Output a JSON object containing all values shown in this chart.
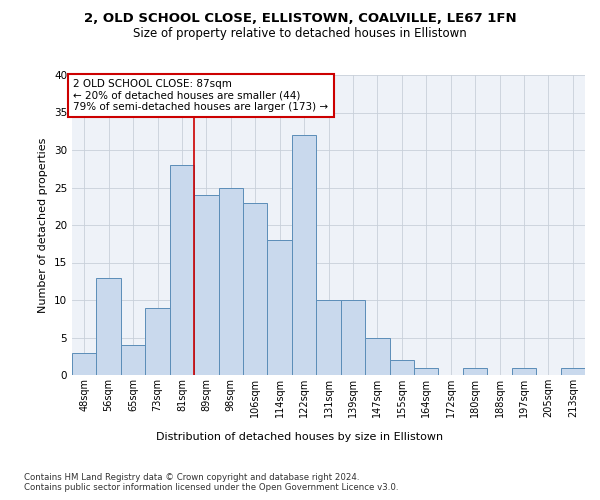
{
  "title_line1": "2, OLD SCHOOL CLOSE, ELLISTOWN, COALVILLE, LE67 1FN",
  "title_line2": "Size of property relative to detached houses in Ellistown",
  "xlabel": "Distribution of detached houses by size in Ellistown",
  "ylabel": "Number of detached properties",
  "bar_labels": [
    "48sqm",
    "56sqm",
    "65sqm",
    "73sqm",
    "81sqm",
    "89sqm",
    "98sqm",
    "106sqm",
    "114sqm",
    "122sqm",
    "131sqm",
    "139sqm",
    "147sqm",
    "155sqm",
    "164sqm",
    "172sqm",
    "180sqm",
    "188sqm",
    "197sqm",
    "205sqm",
    "213sqm"
  ],
  "bar_values": [
    3,
    13,
    4,
    9,
    28,
    24,
    25,
    23,
    18,
    32,
    10,
    10,
    5,
    2,
    1,
    0,
    1,
    0,
    1,
    0,
    1
  ],
  "bar_color": "#c9d9ed",
  "bar_edge_color": "#5b8db8",
  "grid_color": "#c8d0da",
  "annotation_box_text": "2 OLD SCHOOL CLOSE: 87sqm\n← 20% of detached houses are smaller (44)\n79% of semi-detached houses are larger (173) →",
  "annotation_box_color": "#ffffff",
  "annotation_box_edge_color": "#cc0000",
  "vline_x": 4.5,
  "vline_color": "#cc0000",
  "ylim": [
    0,
    40
  ],
  "yticks": [
    0,
    5,
    10,
    15,
    20,
    25,
    30,
    35,
    40
  ],
  "footer_text": "Contains HM Land Registry data © Crown copyright and database right 2024.\nContains public sector information licensed under the Open Government Licence v3.0.",
  "background_color": "#eef2f8"
}
